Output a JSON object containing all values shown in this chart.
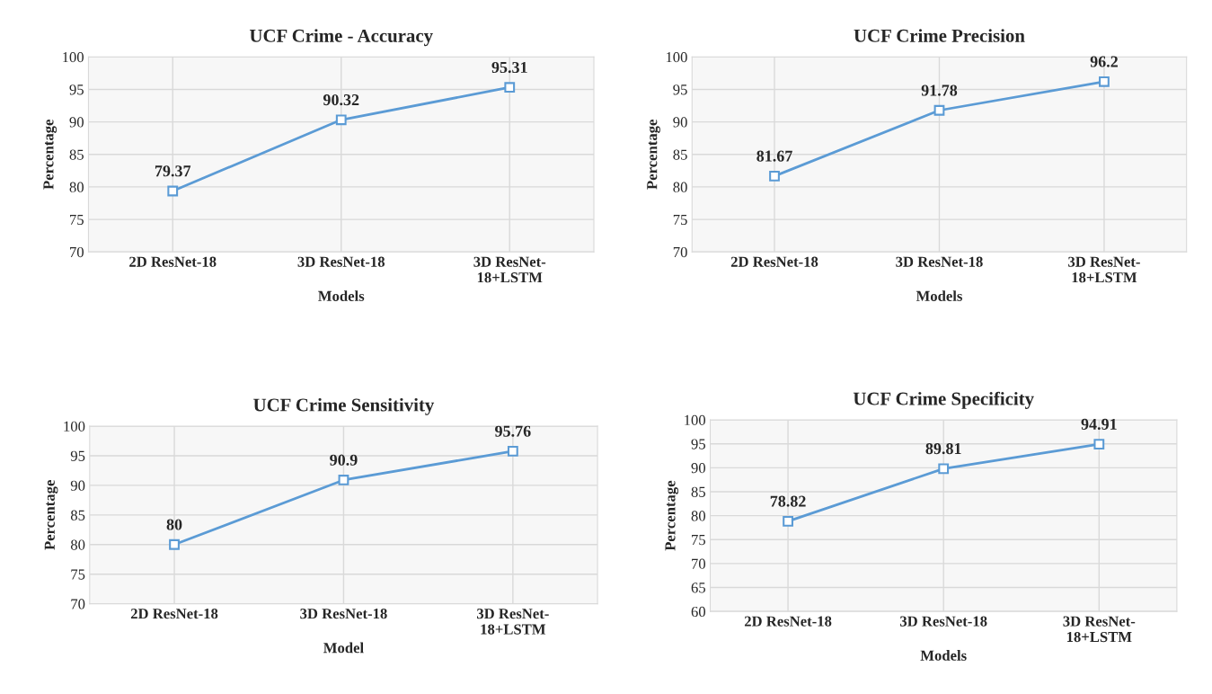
{
  "chart_data": [
    {
      "type": "line",
      "title": "UCF Crime - Accuracy",
      "xlabel": "Models",
      "ylabel": "Percentage",
      "categories": [
        "2D ResNet-18",
        "3D ResNet-18",
        "3D ResNet-\n18+LSTM"
      ],
      "series": [
        {
          "color": "#5b9bd5",
          "values": [
            79.37,
            90.32,
            95.31
          ]
        }
      ],
      "ylim": [
        70,
        100
      ],
      "yticks": [
        70,
        75,
        80,
        85,
        90,
        95,
        100
      ],
      "grid": true,
      "marker": "square",
      "data_labels": true,
      "legend": false
    },
    {
      "type": "line",
      "title": "UCF Crime Precision",
      "xlabel": "Models",
      "ylabel": "Percentage",
      "categories": [
        "2D ResNet-18",
        "3D ResNet-18",
        "3D ResNet-\n18+LSTM"
      ],
      "series": [
        {
          "color": "#5b9bd5",
          "values": [
            81.67,
            91.78,
            96.2
          ]
        }
      ],
      "ylim": [
        70,
        100
      ],
      "yticks": [
        70,
        75,
        80,
        85,
        90,
        95,
        100
      ],
      "grid": true,
      "marker": "square",
      "data_labels": true,
      "legend": false
    },
    {
      "type": "line",
      "title": "UCF Crime Sensitivity",
      "xlabel": "Model",
      "ylabel": "Percentage",
      "categories": [
        "2D ResNet-18",
        "3D ResNet-18",
        "3D ResNet-\n18+LSTM"
      ],
      "series": [
        {
          "color": "#5b9bd5",
          "values": [
            80,
            90.9,
            95.76
          ]
        }
      ],
      "ylim": [
        70,
        100
      ],
      "yticks": [
        70,
        75,
        80,
        85,
        90,
        95,
        100
      ],
      "grid": true,
      "marker": "square",
      "data_labels": true,
      "legend": false
    },
    {
      "type": "line",
      "title": "UCF Crime Specificity",
      "xlabel": "Models",
      "ylabel": "Percentage",
      "categories": [
        "2D ResNet-18",
        "3D ResNet-18",
        "3D ResNet-\n18+LSTM"
      ],
      "series": [
        {
          "color": "#5b9bd5",
          "values": [
            78.82,
            89.81,
            94.91
          ]
        }
      ],
      "ylim": [
        60,
        100
      ],
      "yticks": [
        60,
        65,
        70,
        75,
        80,
        85,
        90,
        95,
        100
      ],
      "grid": true,
      "marker": "square",
      "data_labels": true,
      "legend": false
    }
  ]
}
